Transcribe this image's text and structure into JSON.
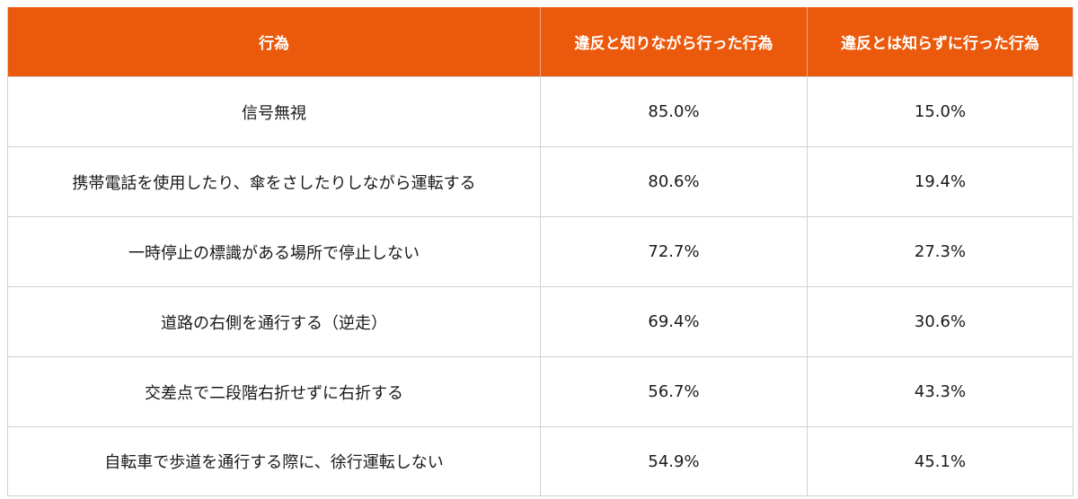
{
  "chart_data": {
    "type": "table",
    "columns": [
      "行為",
      "違反と知りながら行った行為",
      "違反とは知らずに行った行為"
    ],
    "rows": [
      {
        "act": "信号無視",
        "knowing": "85.0%",
        "unknowing": "15.0%"
      },
      {
        "act": "携帯電話を使用したり、傘をさしたりしながら運転する",
        "knowing": "80.6%",
        "unknowing": "19.4%"
      },
      {
        "act": "一時停止の標識がある場所で停止しない",
        "knowing": "72.7%",
        "unknowing": "27.3%"
      },
      {
        "act": "道路の右側を通行する（逆走）",
        "knowing": "69.4%",
        "unknowing": "30.6%"
      },
      {
        "act": "交差点で二段階右折せずに右折する",
        "knowing": "56.7%",
        "unknowing": "43.3%"
      },
      {
        "act": "自転車で歩道を通行する際に、徐行運転しない",
        "knowing": "54.9%",
        "unknowing": "45.1%"
      }
    ]
  },
  "colors": {
    "header_bg": "#eb5a0c",
    "header_text": "#ffffff",
    "border": "#d0d0d0"
  }
}
